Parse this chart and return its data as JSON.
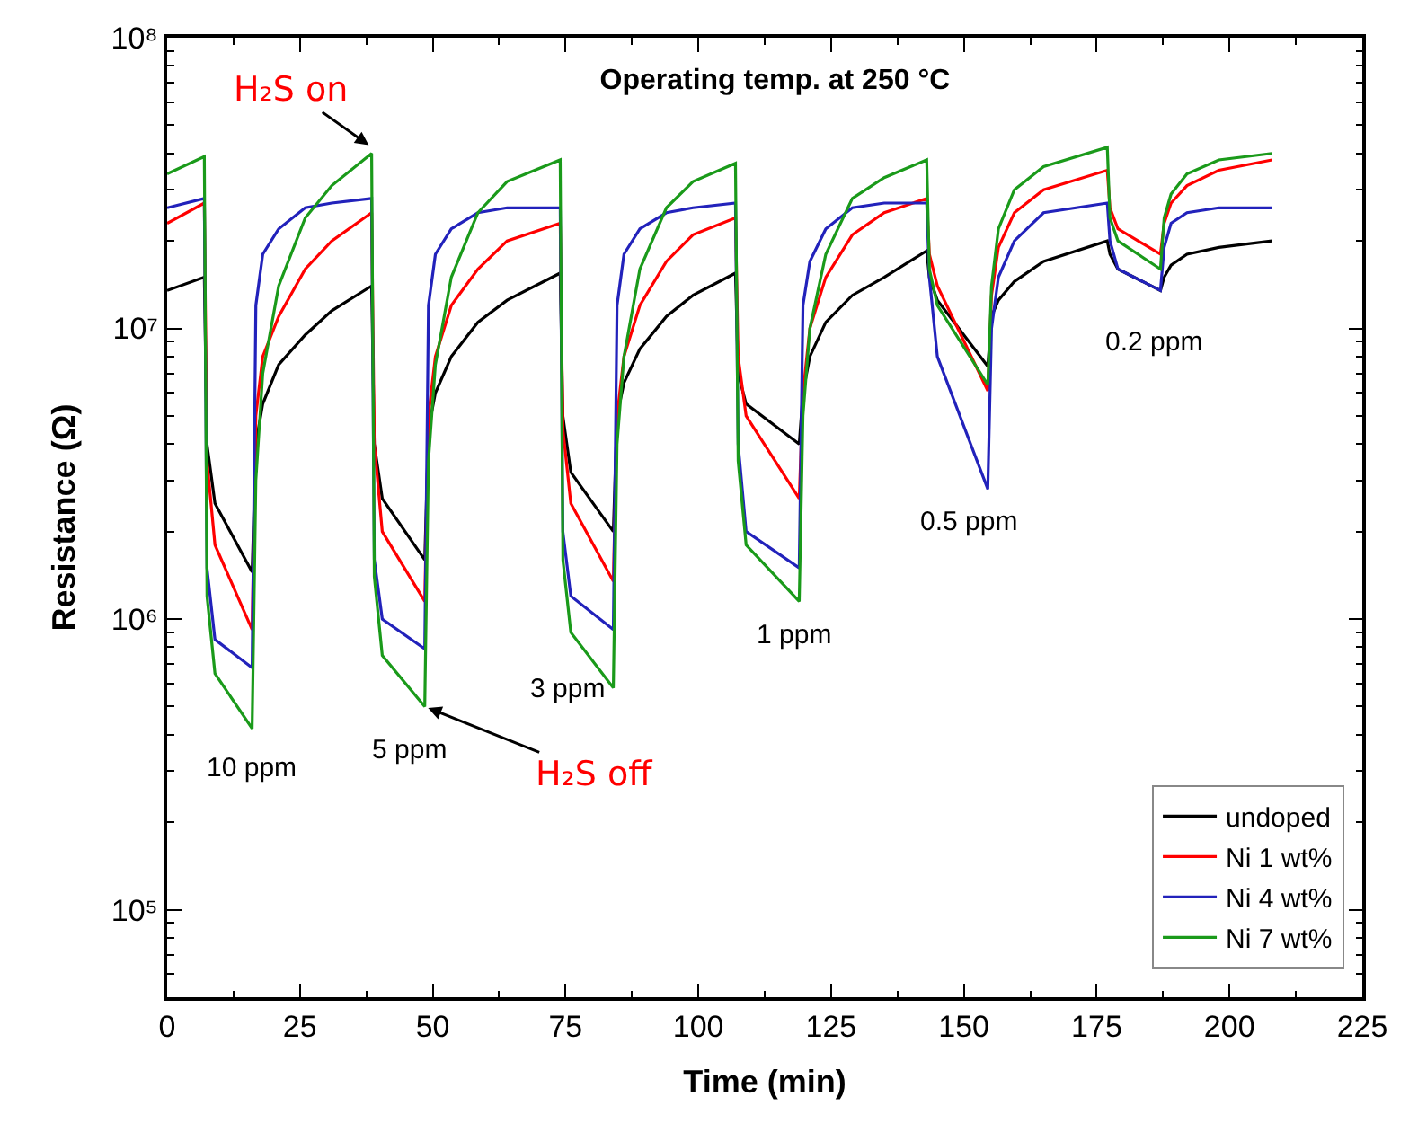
{
  "chart_data": {
    "type": "line",
    "title": "Operating temp. at 250 °C",
    "xlabel": "Time (min)",
    "ylabel": "Resistance (Ω)",
    "x": [
      0,
      7,
      7.5,
      9,
      16,
      16.7,
      18,
      21,
      26,
      31,
      38.5,
      39,
      40.5,
      48.5,
      49.2,
      50.5,
      53.5,
      58.5,
      64,
      74,
      74.5,
      76,
      84,
      84.7,
      86,
      89,
      94,
      99,
      107,
      107.5,
      109,
      119,
      119.7,
      121,
      124,
      129,
      135,
      143,
      143.5,
      145,
      154.5,
      155.2,
      156.5,
      159.5,
      165,
      177,
      177.5,
      179,
      187,
      187.7,
      189,
      192,
      198,
      208
    ],
    "series": [
      {
        "name": "undoped",
        "color": "#000000",
        "values": [
          13500000,
          15000000,
          4000000,
          2500000,
          1450000,
          4000000,
          5500000,
          7500000,
          9500000,
          11500000,
          14000000,
          4000000,
          2600000,
          1600000,
          4500000,
          6000000,
          8000000,
          10500000,
          12500000,
          15500000,
          5000000,
          3200000,
          2000000,
          5000000,
          6500000,
          8500000,
          11000000,
          13000000,
          15500000,
          7000000,
          5500000,
          4000000,
          6000000,
          8000000,
          10500000,
          13000000,
          15000000,
          18500000,
          15000000,
          12500000,
          7400000,
          11000000,
          12500000,
          14500000,
          17000000,
          20000000,
          18000000,
          16000000,
          13500000,
          15000000,
          16500000,
          18000000,
          19000000,
          20000000
        ]
      },
      {
        "name": "Ni 1 wt%",
        "color": "#ff0000",
        "values": [
          23000000,
          27000000,
          3500000,
          1800000,
          920000,
          5000000,
          8000000,
          11000000,
          16000000,
          20000000,
          25000000,
          4000000,
          2000000,
          1150000,
          5000000,
          8000000,
          12000000,
          16000000,
          20000000,
          23000000,
          4500000,
          2500000,
          1350000,
          5000000,
          8000000,
          12000000,
          17000000,
          21000000,
          24000000,
          8000000,
          5000000,
          2600000,
          6000000,
          10000000,
          15000000,
          21000000,
          25000000,
          28000000,
          18000000,
          14000000,
          6100000,
          13000000,
          19000000,
          25000000,
          30000000,
          35000000,
          26000000,
          22000000,
          18000000,
          23000000,
          27000000,
          31000000,
          35000000,
          38000000
        ]
      },
      {
        "name": "Ni 4 wt%",
        "color": "#2222bb",
        "values": [
          26000000,
          28000000,
          1500000,
          850000,
          680000,
          12000000,
          18000000,
          22000000,
          26000000,
          27000000,
          28000000,
          1600000,
          1000000,
          790000,
          12000000,
          18000000,
          22000000,
          25000000,
          26000000,
          26000000,
          2000000,
          1200000,
          920000,
          12000000,
          18000000,
          22000000,
          25000000,
          26000000,
          27000000,
          4000000,
          2000000,
          1500000,
          12000000,
          17000000,
          22000000,
          26000000,
          27000000,
          27000000,
          15000000,
          8000000,
          2800000,
          10000000,
          15000000,
          20000000,
          25000000,
          27000000,
          20000000,
          16000000,
          13500000,
          19000000,
          23000000,
          25000000,
          26000000,
          26000000
        ]
      },
      {
        "name": "Ni 7 wt%",
        "color": "#1a9a1a",
        "values": [
          34000000,
          39000000,
          1200000,
          650000,
          420000,
          3000000,
          7000000,
          14000000,
          24000000,
          31000000,
          40000000,
          1400000,
          750000,
          500000,
          3500000,
          7500000,
          15000000,
          25000000,
          32000000,
          38000000,
          1600000,
          900000,
          580000,
          4000000,
          8000000,
          16000000,
          26000000,
          32000000,
          37000000,
          3500000,
          1800000,
          1150000,
          5000000,
          10000000,
          18000000,
          28000000,
          33000000,
          38000000,
          16000000,
          12000000,
          6400000,
          14000000,
          22000000,
          30000000,
          36000000,
          42000000,
          24000000,
          20000000,
          16000000,
          24000000,
          29000000,
          34000000,
          38000000,
          40000000
        ]
      }
    ],
    "annotations": [
      {
        "text": "H₂S on",
        "x": 38.5,
        "y": 42000000
      },
      {
        "text": "H₂S off",
        "x": 48.5,
        "y": 500000
      },
      "10 ppm",
      "5 ppm",
      "3 ppm",
      "1 ppm",
      "0.5 ppm",
      "0.2 ppm"
    ],
    "xlim": [
      0,
      225
    ],
    "xticks": [
      0,
      25,
      50,
      75,
      100,
      125,
      150,
      175,
      200,
      225
    ],
    "ylim": [
      50000,
      100000000
    ],
    "yticks": [
      {
        "value": 100000,
        "label": "10⁵"
      },
      {
        "value": 1000000,
        "label": "10⁶"
      },
      {
        "value": 10000000,
        "label": "10⁷"
      },
      {
        "value": 100000000,
        "label": "10⁸"
      }
    ],
    "log": true,
    "legend": "bottom right",
    "line_style": "solid",
    "marker": "none"
  }
}
